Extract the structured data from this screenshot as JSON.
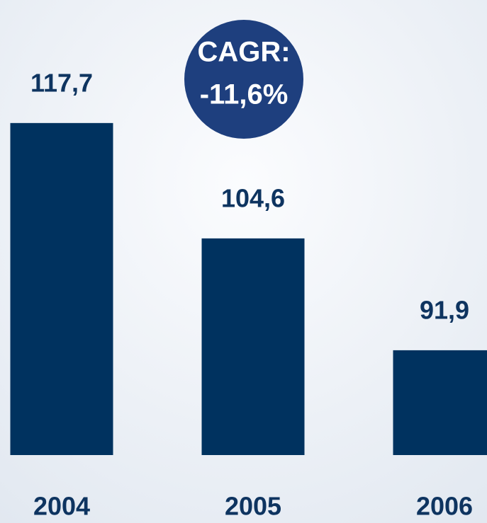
{
  "chart_data": {
    "type": "bar",
    "categories": [
      "2004",
      "2005",
      "2006"
    ],
    "values": [
      117.7,
      104.6,
      91.9
    ],
    "value_labels": [
      "117,7",
      "104,6",
      "91,9"
    ],
    "color": "#00325f",
    "ylim": [
      80,
      125
    ],
    "annotation": [
      "CAGR:",
      "-11,6%"
    ]
  }
}
